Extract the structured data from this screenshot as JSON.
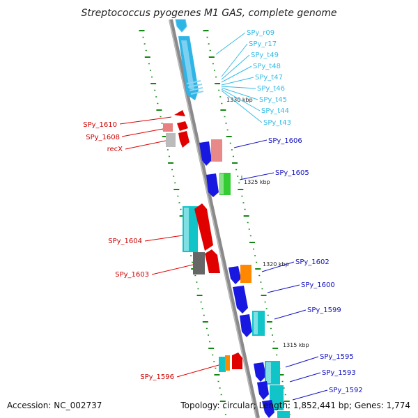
{
  "title": "Streptococcus pyogenes M1 GAS, complete genome",
  "footer": {
    "accession": "Accession: NC_002737",
    "summary": "Topology: circular; Length: 1,852,441 bp; Genes: 1,774"
  },
  "colors": {
    "backbone": "#8a8a8a",
    "rna_label": "#33bbe6",
    "plus_label": "#cc0000",
    "minus_label": "#1010c0",
    "tick": "#118811"
  },
  "kbp_markers": [
    "1330 kbp",
    "1325 kbp",
    "1320 kbp",
    "1315 kbp"
  ],
  "genes_left": [
    "SPy_1610",
    "SPy_1608",
    "recX",
    "SPy_1604",
    "SPy_1603",
    "SPy_1596"
  ],
  "genes_right": [
    "SPy_1606",
    "SPy_1605",
    "SPy_1602",
    "SPy_1600",
    "SPy_1599",
    "SPy_1595",
    "SPy_1593",
    "SPy_1592"
  ],
  "rna_genes": [
    "SPy_r09",
    "SPy_r17",
    "SPy_t49",
    "SPy_t48",
    "SPy_t47",
    "SPy_t46",
    "SPy_t45",
    "SPy_t44",
    "SPy_t43"
  ]
}
